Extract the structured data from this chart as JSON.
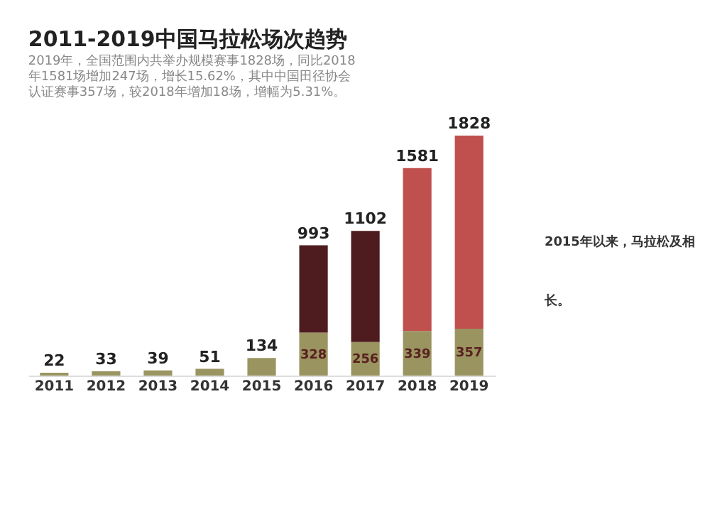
{
  "chart_data": {
    "type": "bar",
    "stacked": true,
    "title": "2011-2019中国马拉松场次趋势",
    "subtitle": [
      "2019年，全国范围内共举办规模赛事1828场，同比2018",
      "年1581场增加247场，增长15.62%，其中中国田径协会",
      "认证赛事357场，较2018年增加18场，增幅为5.31%。"
    ],
    "categories": [
      "2011",
      "2012",
      "2013",
      "2014",
      "2015",
      "2016",
      "2017",
      "2018",
      "2019"
    ],
    "series": [
      {
        "color": "#9a9460",
        "values": [
          22,
          33,
          39,
          51,
          134,
          328,
          256,
          339,
          357
        ],
        "value_labels": [
          null,
          null,
          null,
          null,
          null,
          "328",
          "256",
          "339",
          "357"
        ]
      },
      {
        "colors": [
          "#9a9460",
          "#9a9460",
          "#9a9460",
          "#9a9460",
          "#9a9460",
          "#4e1c1e",
          "#4e1c1e",
          "#c0504d",
          "#c0504d"
        ],
        "values": [
          0,
          0,
          0,
          0,
          0,
          665,
          846,
          1242,
          1471
        ]
      }
    ],
    "totals": [
      "22",
      "33",
      "39",
      "51",
      "134",
      "993",
      "1102",
      "1581",
      "1828"
    ],
    "annotations": [
      "2015年以来，马拉松及相",
      "长。"
    ]
  }
}
